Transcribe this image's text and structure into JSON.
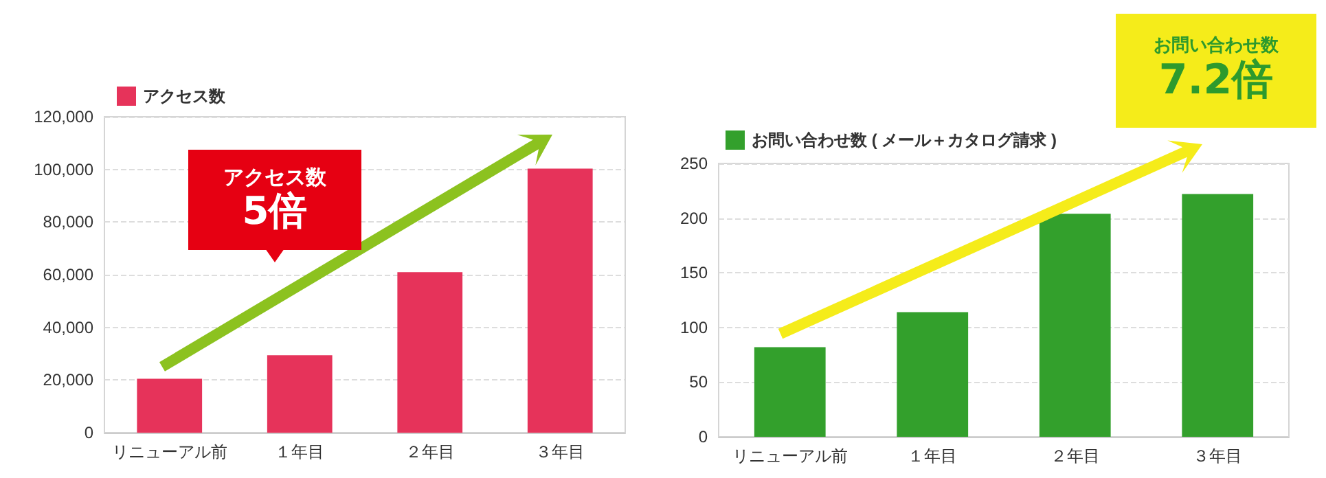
{
  "chart_data": [
    {
      "type": "bar",
      "categories": [
        "リニューアル前",
        "１年目",
        "２年目",
        "３年目"
      ],
      "series": [
        {
          "name": "アクセス数",
          "color": "#e6335a",
          "values": [
            20500,
            29400,
            61000,
            100300
          ]
        }
      ],
      "ylim": [
        0,
        120000
      ],
      "yticks": [
        {
          "value": 0,
          "label": "0"
        },
        {
          "value": 20000,
          "label": "20,000"
        },
        {
          "value": 40000,
          "label": "40,000"
        },
        {
          "value": 60000,
          "label": "60,000"
        },
        {
          "value": 80000,
          "label": "80,000"
        },
        {
          "value": 100000,
          "label": "100,000"
        },
        {
          "value": 120000,
          "label": "120,000"
        }
      ],
      "grid": "y",
      "legend": "top left",
      "annotations": [
        "アクセス数",
        "5倍"
      ]
    },
    {
      "type": "bar",
      "categories": [
        "リニューアル前",
        "１年目",
        "２年目",
        "３年目"
      ],
      "series": [
        {
          "name": "お問い合わせ数 ( メール＋カタログ請求 )",
          "color": "#33a02c",
          "values": [
            82,
            114,
            204,
            222
          ]
        }
      ],
      "ylim": [
        0,
        250
      ],
      "yticks": [
        0,
        50,
        100,
        150,
        200,
        250
      ],
      "grid": "y",
      "legend": "top left",
      "annotations": [
        "お問い合わせ数",
        "7.2倍"
      ]
    }
  ]
}
